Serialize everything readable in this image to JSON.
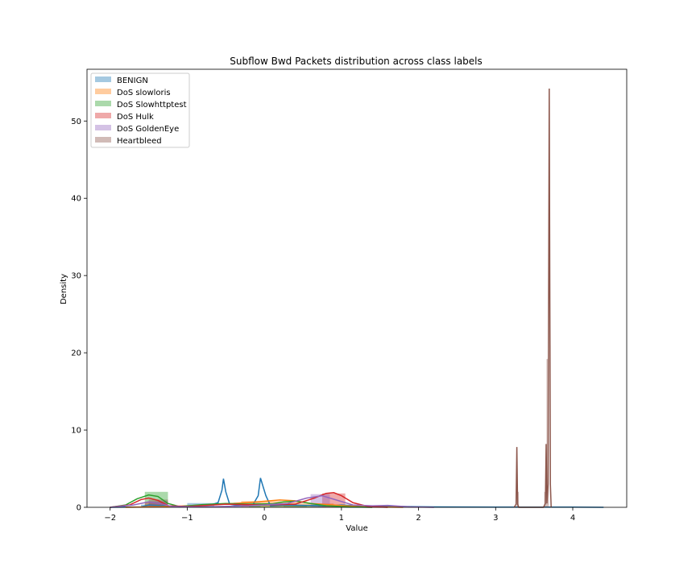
{
  "chart_data": {
    "type": "area",
    "title": "Subflow Bwd Packets distribution across class labels",
    "xlabel": "Value",
    "ylabel": "Density",
    "xlim": [
      -2.3,
      4.7
    ],
    "ylim": [
      0,
      56.7
    ],
    "xticks": [
      "−2",
      "−1",
      "0",
      "1",
      "2",
      "3",
      "4"
    ],
    "xtick_values": [
      -2,
      -1,
      0,
      1,
      2,
      3,
      4
    ],
    "yticks": [
      "0",
      "10",
      "20",
      "30",
      "40",
      "50"
    ],
    "ytick_values": [
      0,
      10,
      20,
      30,
      40,
      50
    ],
    "grid": false,
    "legend_position": "top-left",
    "series": [
      {
        "name": "BENIGN",
        "color": "#1f77b4",
        "hist": [
          [
            -1.6,
            -1.3,
            0.35
          ],
          [
            -1.0,
            -0.65,
            0.55
          ],
          [
            -0.4,
            -0.05,
            0.6
          ],
          [
            0.25,
            0.55,
            0.35
          ],
          [
            0.7,
            1.0,
            0.3
          ]
        ],
        "kde": [
          [
            -2.0,
            0.0
          ],
          [
            -1.6,
            0.05
          ],
          [
            -1.5,
            0.3
          ],
          [
            -1.3,
            0.2
          ],
          [
            -1.1,
            0.05
          ],
          [
            -0.9,
            0.15
          ],
          [
            -0.7,
            0.3
          ],
          [
            -0.6,
            0.6
          ],
          [
            -0.55,
            2.2
          ],
          [
            -0.53,
            3.7
          ],
          [
            -0.5,
            2.0
          ],
          [
            -0.45,
            0.4
          ],
          [
            -0.3,
            0.2
          ],
          [
            -0.15,
            0.3
          ],
          [
            -0.08,
            1.5
          ],
          [
            -0.05,
            3.8
          ],
          [
            -0.02,
            2.8
          ],
          [
            0.02,
            1.5
          ],
          [
            0.08,
            0.2
          ],
          [
            0.3,
            0.3
          ],
          [
            0.5,
            0.25
          ],
          [
            0.8,
            0.2
          ],
          [
            1.0,
            0.3
          ],
          [
            1.2,
            0.2
          ],
          [
            1.5,
            0.15
          ],
          [
            1.8,
            0.1
          ],
          [
            2.2,
            0.05
          ],
          [
            3.0,
            0.03
          ],
          [
            4.0,
            0.02
          ],
          [
            4.4,
            0.0
          ]
        ]
      },
      {
        "name": "DoS slowloris",
        "color": "#ff7f0e",
        "hist": [
          [
            -0.3,
            0.45,
            0.8
          ],
          [
            0.45,
            0.9,
            0.5
          ]
        ],
        "kde": [
          [
            -1.8,
            0.0
          ],
          [
            -1.2,
            0.1
          ],
          [
            -0.8,
            0.3
          ],
          [
            -0.4,
            0.5
          ],
          [
            -0.1,
            0.7
          ],
          [
            0.2,
            0.95
          ],
          [
            0.4,
            0.85
          ],
          [
            0.6,
            0.5
          ],
          [
            0.9,
            0.3
          ],
          [
            1.2,
            0.1
          ],
          [
            1.8,
            0.0
          ]
        ]
      },
      {
        "name": "DoS Slowhttptest",
        "color": "#2ca02c",
        "hist": [
          [
            -1.55,
            -1.25,
            2.0
          ],
          [
            -0.2,
            0.8,
            0.3
          ]
        ],
        "kde": [
          [
            -2.0,
            0.0
          ],
          [
            -1.8,
            0.3
          ],
          [
            -1.65,
            1.1
          ],
          [
            -1.5,
            1.6
          ],
          [
            -1.38,
            1.4
          ],
          [
            -1.25,
            0.5
          ],
          [
            -1.1,
            0.1
          ],
          [
            -0.8,
            0.35
          ],
          [
            -0.5,
            0.5
          ],
          [
            -0.2,
            0.4
          ],
          [
            0.1,
            0.45
          ],
          [
            0.25,
            0.7
          ],
          [
            0.4,
            0.8
          ],
          [
            0.6,
            0.5
          ],
          [
            0.8,
            0.2
          ],
          [
            1.1,
            0.05
          ],
          [
            1.4,
            0.0
          ]
        ]
      },
      {
        "name": "DoS Hulk",
        "color": "#d62728",
        "hist": [
          [
            -1.55,
            -1.25,
            0.7
          ],
          [
            0.75,
            1.05,
            1.8
          ]
        ],
        "kde": [
          [
            -2.0,
            0.0
          ],
          [
            -1.75,
            0.3
          ],
          [
            -1.6,
            1.0
          ],
          [
            -1.5,
            1.2
          ],
          [
            -1.38,
            0.9
          ],
          [
            -1.25,
            0.2
          ],
          [
            -1.0,
            0.1
          ],
          [
            -0.5,
            0.4
          ],
          [
            0.0,
            0.3
          ],
          [
            0.4,
            0.4
          ],
          [
            0.65,
            1.2
          ],
          [
            0.8,
            1.8
          ],
          [
            0.9,
            1.9
          ],
          [
            1.0,
            1.5
          ],
          [
            1.15,
            0.6
          ],
          [
            1.35,
            0.1
          ],
          [
            1.6,
            0.0
          ]
        ]
      },
      {
        "name": "DoS GoldenEye",
        "color": "#9467bd",
        "hist": [
          [
            -1.5,
            -1.25,
            0.8
          ],
          [
            0.6,
            0.85,
            1.7
          ]
        ],
        "kde": [
          [
            -2.0,
            0.0
          ],
          [
            -1.7,
            0.3
          ],
          [
            -1.5,
            0.7
          ],
          [
            -1.35,
            0.5
          ],
          [
            -1.2,
            0.1
          ],
          [
            -0.8,
            0.05
          ],
          [
            -0.2,
            0.2
          ],
          [
            0.3,
            0.5
          ],
          [
            0.55,
            1.2
          ],
          [
            0.75,
            1.5
          ],
          [
            0.95,
            0.9
          ],
          [
            1.15,
            0.3
          ],
          [
            1.4,
            0.2
          ],
          [
            1.6,
            0.25
          ],
          [
            1.9,
            0.05
          ],
          [
            2.2,
            0.0
          ]
        ]
      },
      {
        "name": "Heartbleed",
        "color": "#8c564b",
        "hist": [
          [
            -1.5,
            -1.25,
            1.0
          ],
          [
            3.27,
            3.3,
            2.0
          ],
          [
            3.63,
            3.66,
            2.0
          ],
          [
            3.66,
            3.69,
            19.2
          ]
        ],
        "kde": [
          [
            3.24,
            0.0
          ],
          [
            3.265,
            0.4
          ],
          [
            3.275,
            7.8
          ],
          [
            3.285,
            0.4
          ],
          [
            3.3,
            0.0
          ],
          [
            3.62,
            0.0
          ],
          [
            3.645,
            0.5
          ],
          [
            3.655,
            8.2
          ],
          [
            3.665,
            0.5
          ],
          [
            3.68,
            3.0
          ],
          [
            3.695,
            54.2
          ],
          [
            3.71,
            3.0
          ],
          [
            3.72,
            0.0
          ]
        ]
      }
    ]
  }
}
